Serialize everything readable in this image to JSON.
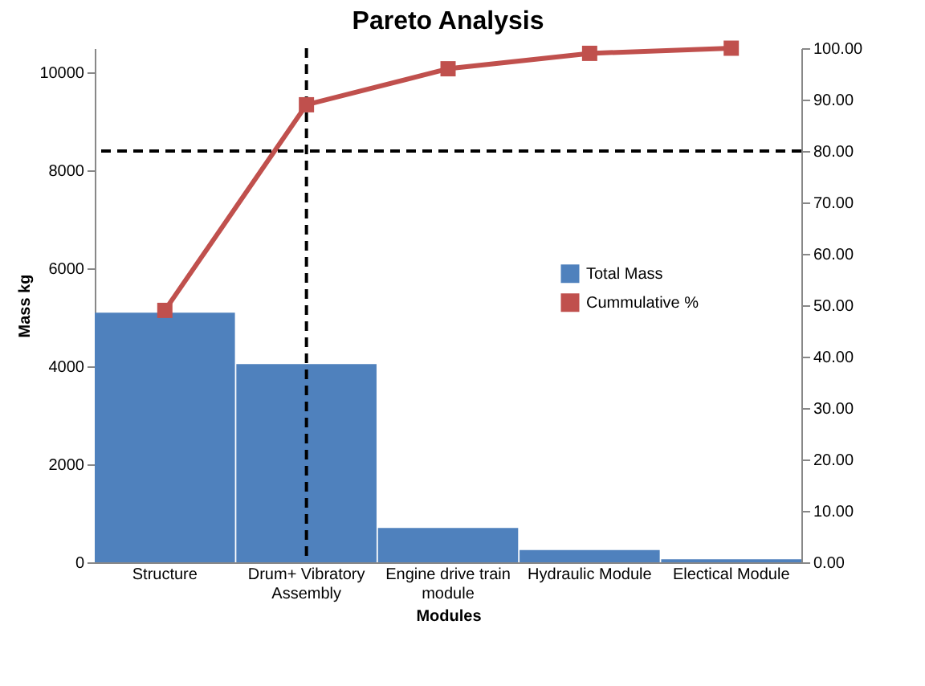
{
  "chart_data": {
    "type": "bar",
    "title": "Pareto Analysis",
    "xlabel": "Modules",
    "ylabel": "Mass kg",
    "categories": [
      "Structure",
      "Drum+ Vibratory\nAssembly",
      "Engine drive train\nmodule",
      "Hydraulic Module",
      "Electical Module"
    ],
    "series": [
      {
        "name": "Total Mass",
        "color": "#4f81bd",
        "values": [
          5100,
          4050,
          700,
          250,
          60
        ]
      },
      {
        "name": "Cummulative %",
        "type": "line",
        "axis": "y2",
        "color": "#c0504d",
        "marker": "square",
        "values": [
          49,
          89,
          96,
          99,
          100
        ]
      }
    ],
    "ylim": [
      0,
      10500
    ],
    "yticks": [
      0,
      2000,
      4000,
      6000,
      8000,
      10000
    ],
    "y2lim": [
      0,
      100
    ],
    "y2ticks": [
      {
        "value": 0,
        "label": "0.00"
      },
      {
        "value": 10,
        "label": "10.00"
      },
      {
        "value": 20,
        "label": "20.00"
      },
      {
        "value": 30,
        "label": "30.00"
      },
      {
        "value": 40,
        "label": "40.00"
      },
      {
        "value": 50,
        "label": "50.00"
      },
      {
        "value": 60,
        "label": "60.00"
      },
      {
        "value": 70,
        "label": "70.00"
      },
      {
        "value": 80,
        "label": "80.00"
      },
      {
        "value": 90,
        "label": "90.00"
      },
      {
        "value": 100,
        "label": "100.00"
      }
    ],
    "ref_lines": [
      {
        "axis": "y2",
        "value": 80,
        "line_style": "dashed",
        "color": "#000000"
      },
      {
        "axis": "x",
        "value": "Drum+ Vibratory\nAssembly",
        "line_style": "dashed",
        "color": "#000000"
      }
    ],
    "legend": "right",
    "grid": false
  }
}
